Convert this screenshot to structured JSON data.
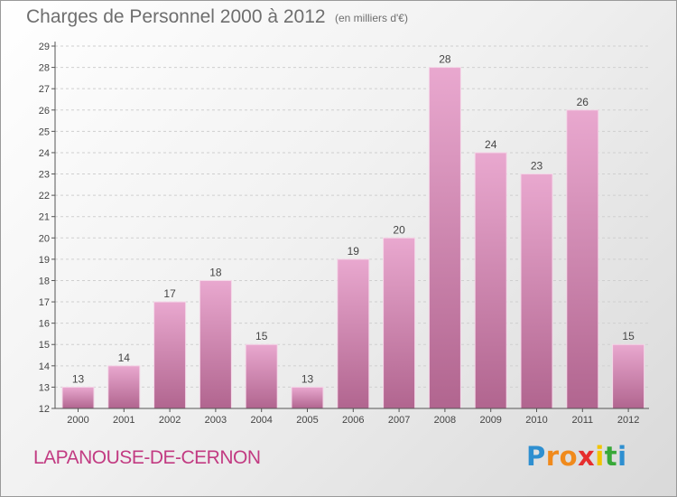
{
  "header": {
    "title": "Charges de Personnel 2000 à 2012",
    "subtitle": "(en milliers d'€)"
  },
  "footer": {
    "commune": "LAPANOUSE-DE-CERNON",
    "logo_letters": [
      {
        "char": "P",
        "color": "#2e8fd0"
      },
      {
        "char": "r",
        "color": "#f08a1c"
      },
      {
        "char": "o",
        "color": "#f08a1c"
      },
      {
        "char": "x",
        "color": "#e62e2e"
      },
      {
        "char": "i",
        "color": "#f2c400"
      },
      {
        "char": "t",
        "color": "#38a838"
      },
      {
        "char": "i",
        "color": "#2e8fd0"
      }
    ]
  },
  "colors": {
    "bar_top": "#e9a8cf",
    "bar_bottom": "#b1658f",
    "axis": "#555555",
    "grid": "#cfcfcf",
    "text": "#444444",
    "commune": "#c23b82"
  },
  "chart_data": {
    "type": "bar",
    "categories": [
      "2000",
      "2001",
      "2002",
      "2003",
      "2004",
      "2005",
      "2006",
      "2007",
      "2008",
      "2009",
      "2010",
      "2011",
      "2012"
    ],
    "values": [
      13,
      14,
      17,
      18,
      15,
      13,
      19,
      20,
      28,
      24,
      23,
      26,
      15
    ],
    "ylim": [
      12,
      29
    ],
    "yticks": [
      12,
      13,
      14,
      15,
      16,
      17,
      18,
      19,
      20,
      21,
      22,
      23,
      24,
      25,
      26,
      27,
      28,
      29
    ],
    "grid": true,
    "data_labels": true
  }
}
